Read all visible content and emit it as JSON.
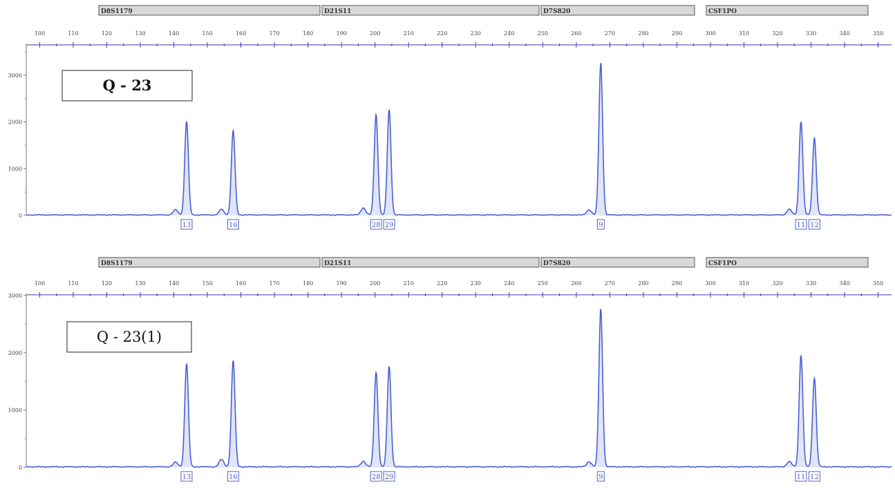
{
  "chart_data": [
    {
      "type": "line",
      "sample_label": "Q - 23",
      "loci": [
        "D8S1179",
        "D21S11",
        "D7S820",
        "CSF1PO"
      ],
      "x_ticks": [
        100,
        110,
        120,
        130,
        140,
        150,
        160,
        170,
        180,
        190,
        200,
        210,
        220,
        230,
        240,
        250,
        260,
        270,
        280,
        290,
        300,
        310,
        320,
        330,
        340,
        350
      ],
      "y_ticks": [
        0,
        1000,
        2000,
        3000
      ],
      "xlim": [
        96,
        354
      ],
      "ylim": [
        -80,
        3650
      ],
      "peaks": [
        {
          "x": 143.8,
          "height": 2000,
          "allele": "13"
        },
        {
          "x": 157.7,
          "height": 1800,
          "allele": "16"
        },
        {
          "x": 200.3,
          "height": 2150,
          "allele": "28"
        },
        {
          "x": 204.2,
          "height": 2250,
          "allele": "29"
        },
        {
          "x": 267.3,
          "height": 3250,
          "allele": "9"
        },
        {
          "x": 327.0,
          "height": 2000,
          "allele": "11"
        },
        {
          "x": 331.0,
          "height": 1650,
          "allele": "12"
        }
      ],
      "minor_peaks": [
        {
          "x": 140.5,
          "height": 110
        },
        {
          "x": 154.2,
          "height": 120
        },
        {
          "x": 196.5,
          "height": 150
        },
        {
          "x": 263.8,
          "height": 110
        },
        {
          "x": 323.5,
          "height": 120
        }
      ]
    },
    {
      "type": "line",
      "sample_label": "Q - 23(1)",
      "loci": [
        "D8S1179",
        "D21S11",
        "D7S820",
        "CSF1PO"
      ],
      "x_ticks": [
        100,
        110,
        120,
        130,
        140,
        150,
        160,
        170,
        180,
        190,
        200,
        210,
        220,
        230,
        240,
        250,
        260,
        270,
        280,
        290,
        300,
        310,
        320,
        330,
        340,
        350
      ],
      "y_ticks": [
        0,
        1000,
        2000,
        3000
      ],
      "xlim": [
        96,
        354
      ],
      "ylim": [
        -60,
        3010
      ],
      "peaks": [
        {
          "x": 143.8,
          "height": 1800,
          "allele": "13"
        },
        {
          "x": 157.7,
          "height": 1850,
          "allele": "16"
        },
        {
          "x": 200.3,
          "height": 1650,
          "allele": "28"
        },
        {
          "x": 204.2,
          "height": 1750,
          "allele": "29"
        },
        {
          "x": 267.3,
          "height": 2750,
          "allele": "9"
        },
        {
          "x": 327.0,
          "height": 1950,
          "allele": "11"
        },
        {
          "x": 331.0,
          "height": 1550,
          "allele": "12"
        }
      ],
      "minor_peaks": [
        {
          "x": 140.5,
          "height": 80
        },
        {
          "x": 154.2,
          "height": 130
        },
        {
          "x": 196.5,
          "height": 100
        },
        {
          "x": 263.8,
          "height": 90
        },
        {
          "x": 323.5,
          "height": 90
        }
      ]
    }
  ],
  "colors": {
    "trace": "#4a5fd0",
    "trace_fill": "#c9d0f2",
    "axis": "#3a3ab8",
    "locus_bar_fill": "#d8d8d8",
    "locus_bar_border": "#555555",
    "allele_box": "#5060c0"
  }
}
